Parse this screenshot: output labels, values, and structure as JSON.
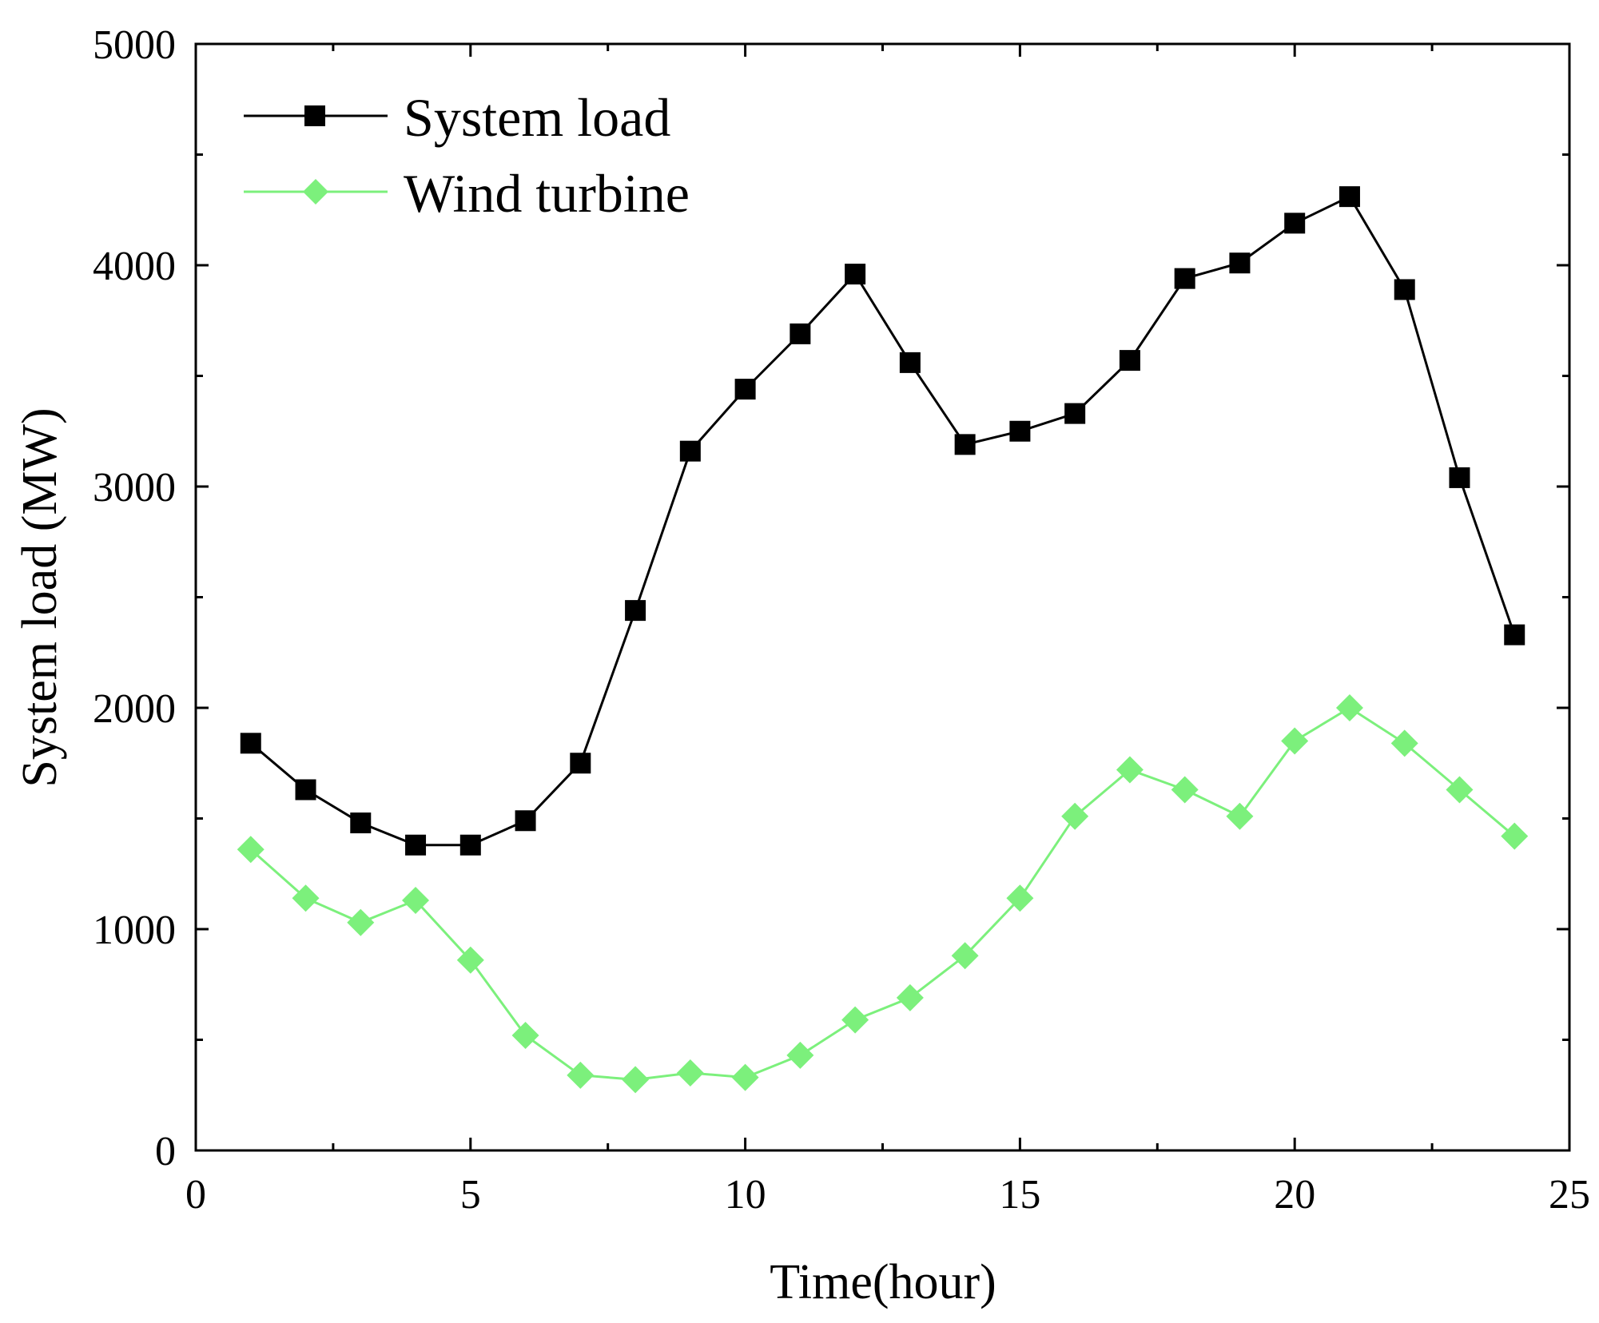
{
  "chart_data": {
    "type": "line",
    "title": "",
    "xlabel": "Time(hour)",
    "ylabel": "System load (MW)",
    "xlim": [
      0,
      25
    ],
    "ylim": [
      0,
      5000
    ],
    "xticks": [
      0,
      5,
      10,
      15,
      20,
      25
    ],
    "yticks": [
      0,
      1000,
      2000,
      3000,
      4000,
      5000
    ],
    "grid": false,
    "legend_position": "top-left",
    "x": [
      1,
      2,
      3,
      4,
      5,
      6,
      7,
      8,
      9,
      10,
      11,
      12,
      13,
      14,
      15,
      16,
      17,
      18,
      19,
      20,
      21,
      22,
      23,
      24
    ],
    "series": [
      {
        "name": "System load",
        "color": "#000000",
        "marker": "square",
        "values": [
          1840,
          1630,
          1480,
          1380,
          1380,
          1490,
          1750,
          2440,
          3160,
          3440,
          3690,
          3960,
          3560,
          3190,
          3250,
          3330,
          3570,
          3940,
          4010,
          4190,
          4310,
          3890,
          3040,
          2330
        ]
      },
      {
        "name": "Wind turbine",
        "color": "#7CF07C",
        "marker": "diamond",
        "values": [
          1360,
          1140,
          1030,
          1130,
          860,
          520,
          340,
          320,
          350,
          330,
          430,
          590,
          690,
          880,
          1140,
          1510,
          1720,
          1630,
          1510,
          1850,
          2000,
          1840,
          1630,
          1420
        ]
      }
    ]
  }
}
